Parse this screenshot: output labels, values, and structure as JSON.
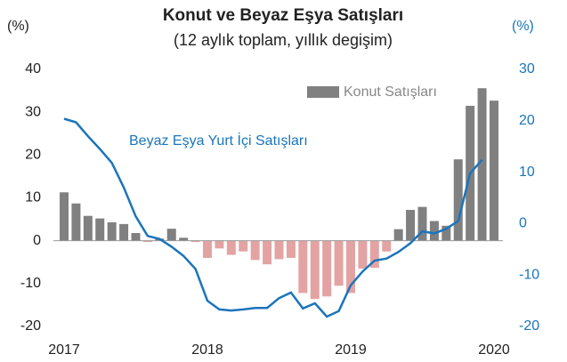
{
  "chart_data": {
    "type": "bar_line",
    "title": "Konut ve Beyaz Eşya Satışları",
    "subtitle": "(12 aylık toplam, yıllık degişim)",
    "y_label": "(%)",
    "y2_label": "(%)",
    "categories": [
      "2017",
      null,
      null,
      null,
      null,
      null,
      null,
      null,
      null,
      null,
      null,
      null,
      "2018",
      null,
      null,
      null,
      null,
      null,
      null,
      null,
      null,
      null,
      null,
      null,
      "2019",
      null,
      null,
      null,
      null,
      null,
      null,
      null,
      null,
      null,
      null,
      null,
      "2020"
    ],
    "series": [
      {
        "name": "Konut Satışları",
        "type": "bar",
        "color": "#808080",
        "negative_color": "#e3a3a3",
        "values": [
          11.3,
          8.7,
          5.8,
          5.2,
          4.3,
          3.9,
          1.8,
          -0.3,
          0.5,
          2.8,
          0.7,
          -0.3,
          -4.0,
          -1.8,
          -3.3,
          -2.5,
          -4.5,
          -5.5,
          -4.3,
          -4.0,
          -12.2,
          -13.6,
          -13.0,
          -10.5,
          -12.2,
          -6.5,
          -6.3,
          -2.5,
          2.7,
          7.2,
          7.9,
          4.6,
          3.5,
          19.0,
          31.5,
          35.6,
          32.7
        ]
      },
      {
        "name": "Beyaz Eşya Yurt İçi Satışları",
        "type": "line",
        "axis": "y2",
        "color": "#1a75bc",
        "values": [
          20.4,
          19.7,
          17.0,
          14.5,
          11.8,
          7.0,
          1.4,
          -2.4,
          -3.0,
          -4.5,
          -6.3,
          -8.8,
          -15.0,
          -16.7,
          -16.9,
          -16.7,
          -16.4,
          -16.4,
          -14.5,
          -13.4,
          -16.5,
          -15.5,
          -18.1,
          -17.0,
          -12.0,
          -9.3,
          -7.2,
          -6.8,
          -5.5,
          -3.8,
          -1.5,
          -1.9,
          -1.0,
          0.5,
          9.8,
          12.4,
          null
        ]
      }
    ],
    "ylim": [
      -20,
      40
    ],
    "yticks": [
      -20,
      -10,
      0,
      10,
      20,
      30,
      40
    ],
    "y2lim": [
      -20,
      30
    ],
    "y2ticks": [
      -20,
      -10,
      0,
      10,
      20,
      30
    ],
    "y2_color": "#1a75bc",
    "grid": false,
    "legend": "top-right"
  }
}
